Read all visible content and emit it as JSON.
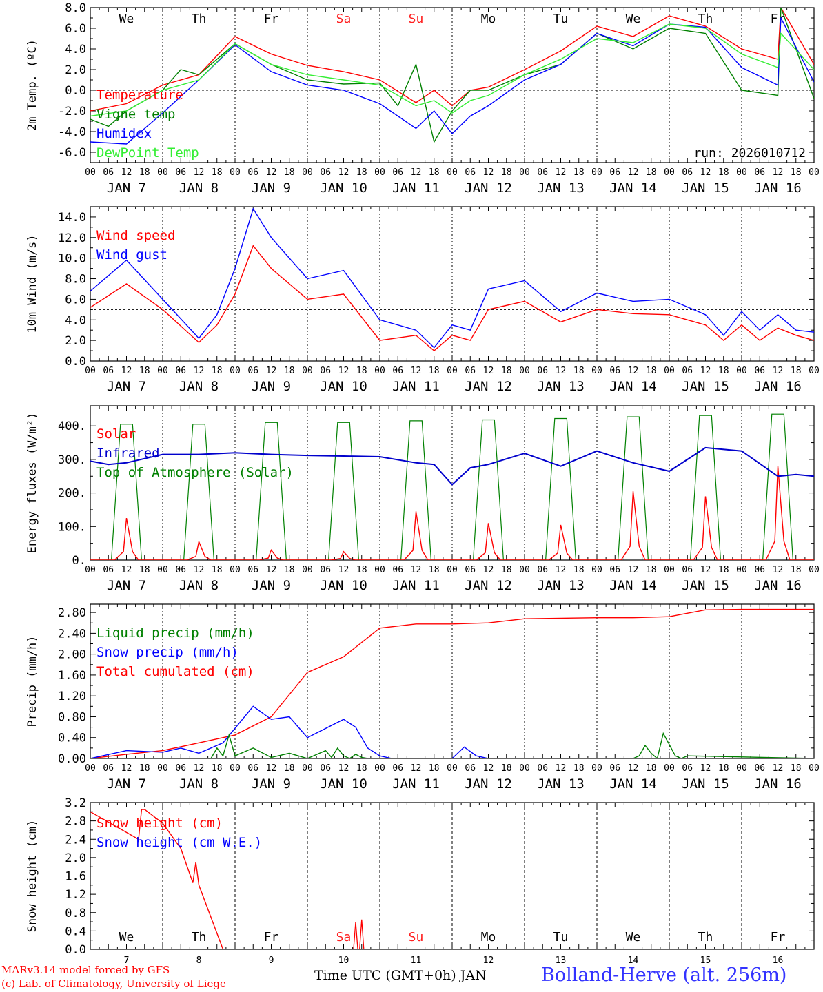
{
  "footer": {
    "credit_line1": "MARv3.14 model forced by GFS",
    "credit_line2": "(c) Lab. of Climatology, University of Liege",
    "xlabel": "Time UTC (GMT+0h) JAN",
    "station": "Bolland-Herve (alt. 256m)"
  },
  "colors": {
    "red": "#ff0000",
    "green": "#008000",
    "blue": "#0000ff",
    "lightgreen": "#33ee33",
    "dayred": "#ff2020"
  },
  "chart_data": [
    {
      "type": "line",
      "ylabel": "2m Temp. (ºC)",
      "ylim": [
        -7,
        8
      ],
      "yticks": [
        "-6.0",
        "-4.0",
        "-2.0",
        "0.0",
        "2.0",
        "4.0",
        "6.0",
        "8.0"
      ],
      "ref_line": 0,
      "weekdays": [
        "We",
        "Th",
        "Fr",
        "Sa",
        "Su",
        "Mo",
        "Tu",
        "We",
        "Th",
        "Fr"
      ],
      "weekday_red": [
        false,
        false,
        false,
        true,
        true,
        false,
        false,
        false,
        false,
        false
      ],
      "run": "run: 2026010712",
      "hour_ticks": [
        "00",
        "06",
        "12",
        "18"
      ],
      "date_labels": [
        "JAN  7",
        "JAN  8",
        "JAN  9",
        "JAN 10",
        "JAN 11",
        "JAN 12",
        "JAN 13",
        "JAN 14",
        "JAN 15",
        "JAN 16"
      ],
      "legend": [
        "Temperature",
        "Vigne temp",
        "Humidex",
        "DewPoint Temp"
      ],
      "series": [
        {
          "name": "Temperature",
          "color": "#ff0000",
          "x": [
            0,
            12,
            24,
            36,
            48,
            60,
            72,
            84,
            96,
            108,
            114,
            120,
            126,
            132,
            144,
            156,
            168,
            180,
            192,
            204,
            216,
            228,
            229,
            240
          ],
          "values": [
            -2,
            -1.3,
            0.5,
            1.5,
            5.2,
            3.5,
            2.4,
            1.8,
            1,
            -1.2,
            0,
            -1.5,
            0,
            0.3,
            2,
            3.8,
            6.2,
            5.2,
            7.2,
            6.2,
            4,
            3,
            8,
            2.5
          ]
        },
        {
          "name": "Vigne temp",
          "color": "#008000",
          "x": [
            0,
            6,
            12,
            24,
            30,
            36,
            48,
            60,
            72,
            84,
            96,
            102,
            108,
            114,
            120,
            126,
            132,
            144,
            156,
            168,
            180,
            192,
            204,
            216,
            228,
            229,
            240
          ],
          "values": [
            -2.8,
            -3.5,
            -2,
            0,
            2,
            1.5,
            4.5,
            2.5,
            1,
            0.6,
            0.7,
            -1.5,
            2.5,
            -5,
            -2,
            0,
            0,
            1.5,
            2.5,
            5.5,
            4,
            6,
            5.5,
            0,
            -0.5,
            8,
            -0.8
          ]
        },
        {
          "name": "Humidex",
          "color": "#0000ff",
          "x": [
            0,
            12,
            24,
            36,
            48,
            60,
            72,
            84,
            96,
            108,
            114,
            120,
            126,
            132,
            144,
            156,
            168,
            180,
            192,
            204,
            216,
            228,
            229,
            240
          ],
          "values": [
            -5,
            -5.2,
            -2.2,
            1,
            4.4,
            1.8,
            0.5,
            0,
            -1.3,
            -3.7,
            -2,
            -4.2,
            -2.5,
            -1.5,
            1,
            2.5,
            5.5,
            4.3,
            6.4,
            6.1,
            2.2,
            0.5,
            7,
            0.8
          ]
        },
        {
          "name": "DewPoint Temp",
          "color": "#33ee33",
          "x": [
            0,
            12,
            24,
            36,
            48,
            60,
            72,
            84,
            96,
            108,
            114,
            120,
            126,
            132,
            144,
            156,
            168,
            180,
            192,
            204,
            216,
            228,
            229,
            240
          ],
          "values": [
            -2.5,
            -2,
            0,
            1,
            4.5,
            2.5,
            1.5,
            1,
            0.5,
            -1.5,
            -1,
            -2.2,
            -1,
            -0.5,
            1.5,
            3,
            5,
            4.6,
            6.4,
            6,
            3.5,
            2.2,
            5.5,
            2
          ]
        }
      ]
    },
    {
      "type": "line",
      "ylabel": "10m Wind (m/s)",
      "ylim": [
        0,
        15
      ],
      "yticks": [
        "0.0",
        "2.0",
        "4.0",
        "6.0",
        "8.0",
        "10.0",
        "12.0",
        "14.0"
      ],
      "ref_line": 5,
      "hour_ticks": [
        "00",
        "06",
        "12",
        "18"
      ],
      "date_labels": [
        "JAN  7",
        "JAN  8",
        "JAN  9",
        "JAN 10",
        "JAN 11",
        "JAN 12",
        "JAN 13",
        "JAN 14",
        "JAN 15",
        "JAN 16"
      ],
      "legend": [
        "Wind speed",
        "Wind gust"
      ],
      "series": [
        {
          "name": "Wind speed",
          "color": "#ff0000",
          "x": [
            0,
            12,
            24,
            36,
            42,
            48,
            54,
            60,
            72,
            84,
            96,
            108,
            114,
            120,
            126,
            132,
            144,
            156,
            168,
            180,
            192,
            204,
            210,
            216,
            222,
            228,
            234,
            240
          ],
          "values": [
            5.2,
            7.5,
            5,
            1.8,
            3.5,
            6.5,
            11.2,
            9,
            6,
            6.5,
            2,
            2.5,
            1,
            2.5,
            2,
            5,
            5.8,
            3.8,
            5,
            4.6,
            4.5,
            3.5,
            2,
            3.5,
            2,
            3.2,
            2.5,
            2
          ]
        },
        {
          "name": "Wind gust",
          "color": "#0000ff",
          "x": [
            0,
            12,
            24,
            36,
            42,
            48,
            54,
            60,
            72,
            84,
            96,
            108,
            114,
            120,
            126,
            132,
            144,
            156,
            168,
            180,
            192,
            204,
            210,
            216,
            222,
            228,
            234,
            240
          ],
          "values": [
            6.8,
            9.8,
            6,
            2.2,
            4.5,
            9,
            14.8,
            12,
            8,
            8.8,
            4,
            3,
            1.3,
            3.5,
            3,
            7,
            7.8,
            4.8,
            6.6,
            5.8,
            6,
            4.5,
            2.5,
            4.8,
            3,
            4.5,
            3,
            2.8
          ]
        }
      ]
    },
    {
      "type": "line",
      "ylabel": "Energy fluxes (W/m²)",
      "ylim": [
        0,
        460
      ],
      "yticks": [
        "0.",
        "100.",
        "200.",
        "300.",
        "400."
      ],
      "hour_ticks": [
        "00",
        "06",
        "12",
        "18"
      ],
      "date_labels": [
        "JAN  7",
        "JAN  8",
        "JAN  9",
        "JAN 10",
        "JAN 11",
        "JAN 12",
        "JAN 13",
        "JAN 14",
        "JAN 15",
        "JAN 16"
      ],
      "legend": [
        "Solar",
        "Infrared",
        "Top of Atmosphere (Solar)"
      ],
      "toa_peaks": [
        405,
        405,
        410,
        410,
        415,
        418,
        422,
        427,
        431,
        435
      ],
      "solar_peaks": [
        125,
        55,
        30,
        25,
        145,
        110,
        105,
        205,
        190,
        280
      ],
      "series": [
        {
          "name": "Infrared",
          "color": "#0000cc",
          "x": [
            0,
            6,
            12,
            24,
            36,
            48,
            60,
            72,
            84,
            96,
            108,
            114,
            120,
            126,
            132,
            144,
            156,
            168,
            180,
            192,
            204,
            216,
            228,
            234,
            240
          ],
          "values": [
            295,
            285,
            290,
            315,
            315,
            320,
            315,
            312,
            310,
            308,
            290,
            285,
            225,
            275,
            285,
            318,
            280,
            325,
            290,
            265,
            335,
            325,
            250,
            255,
            250
          ]
        }
      ]
    },
    {
      "type": "line",
      "ylabel": "Precip (mm/h)",
      "ylim": [
        0,
        2.96
      ],
      "yticks": [
        "0.00",
        "0.40",
        "0.80",
        "1.20",
        "1.60",
        "2.00",
        "2.40",
        "2.80"
      ],
      "hour_ticks": [
        "00",
        "06",
        "12",
        "18"
      ],
      "date_labels": [
        "JAN  7",
        "JAN  8",
        "JAN  9",
        "JAN 10",
        "JAN 11",
        "JAN 12",
        "JAN 13",
        "JAN 14",
        "JAN 15",
        "JAN 16"
      ],
      "legend": [
        "Liquid precip (mm/h)",
        "Snow precip (mm/h)",
        "Total cumulated (cm)"
      ],
      "series": [
        {
          "name": "Total cumulated (cm)",
          "color": "#ff0000",
          "x": [
            0,
            12,
            24,
            36,
            48,
            60,
            72,
            84,
            96,
            108,
            120,
            132,
            144,
            168,
            180,
            192,
            204,
            216,
            240
          ],
          "values": [
            0,
            0.08,
            0.15,
            0.3,
            0.45,
            0.8,
            1.65,
            1.95,
            2.5,
            2.58,
            2.58,
            2.6,
            2.68,
            2.7,
            2.7,
            2.72,
            2.85,
            2.86,
            2.86
          ]
        },
        {
          "name": "Snow precip (mm/h)",
          "color": "#0000ff",
          "x": [
            0,
            12,
            24,
            30,
            36,
            44,
            54,
            60,
            66,
            72,
            84,
            88,
            92,
            96,
            100,
            120,
            124,
            128,
            132,
            240
          ],
          "values": [
            0,
            0.15,
            0.12,
            0.2,
            0.1,
            0.3,
            1,
            0.75,
            0.8,
            0.4,
            0.75,
            0.6,
            0.2,
            0.05,
            0,
            0,
            0.22,
            0.05,
            0,
            0
          ]
        },
        {
          "name": "Liquid precip (mm/h)",
          "color": "#008000",
          "x": [
            0,
            40,
            42,
            44,
            46,
            48,
            54,
            60,
            66,
            72,
            78,
            80,
            82,
            84,
            86,
            88,
            90,
            92,
            180,
            182,
            184,
            186,
            188,
            190,
            194,
            196,
            198,
            240
          ],
          "values": [
            0,
            0,
            0.2,
            0.05,
            0.45,
            0.05,
            0.2,
            0.02,
            0.1,
            0,
            0.15,
            0.02,
            0.2,
            0.05,
            0,
            0.08,
            0.02,
            0,
            0,
            0.05,
            0.25,
            0.1,
            0,
            0.48,
            0.05,
            0,
            0.05,
            0
          ]
        }
      ]
    },
    {
      "type": "line",
      "ylabel": "Snow height (cm)",
      "ylim": [
        0,
        3.2
      ],
      "yticks": [
        "0.0",
        "0.4",
        "0.8",
        "1.2",
        "1.6",
        "2.0",
        "2.4",
        "2.8",
        "3.2"
      ],
      "weekdays": [
        "We",
        "Th",
        "Fr",
        "Sa",
        "Su",
        "Mo",
        "Tu",
        "We",
        "Th",
        "Fr"
      ],
      "weekday_red": [
        false,
        false,
        false,
        true,
        true,
        false,
        false,
        false,
        false,
        false
      ],
      "day_numbers": [
        "7",
        "8",
        "9",
        "10",
        "11",
        "12",
        "13",
        "14",
        "15",
        "16"
      ],
      "legend": [
        "Snow height (cm)",
        "Snow height (cm W.E.)"
      ],
      "series": [
        {
          "name": "Snow height (cm)",
          "color": "#ff0000",
          "x": [
            0,
            16,
            17,
            18,
            24,
            30,
            34,
            35,
            36,
            40,
            44,
            45,
            240
          ],
          "values": [
            3,
            2.4,
            3.05,
            3.05,
            2.75,
            2.2,
            1.45,
            1.9,
            1.4,
            0.7,
            0,
            0,
            0
          ],
          "spikes": [
            [
              88,
              0.6
            ],
            [
              90,
              0.65
            ]
          ]
        },
        {
          "name": "Snow height (cm W.E.)",
          "color": "#0000ff",
          "x": [
            0,
            240
          ],
          "values": [
            0,
            0
          ]
        }
      ]
    }
  ]
}
